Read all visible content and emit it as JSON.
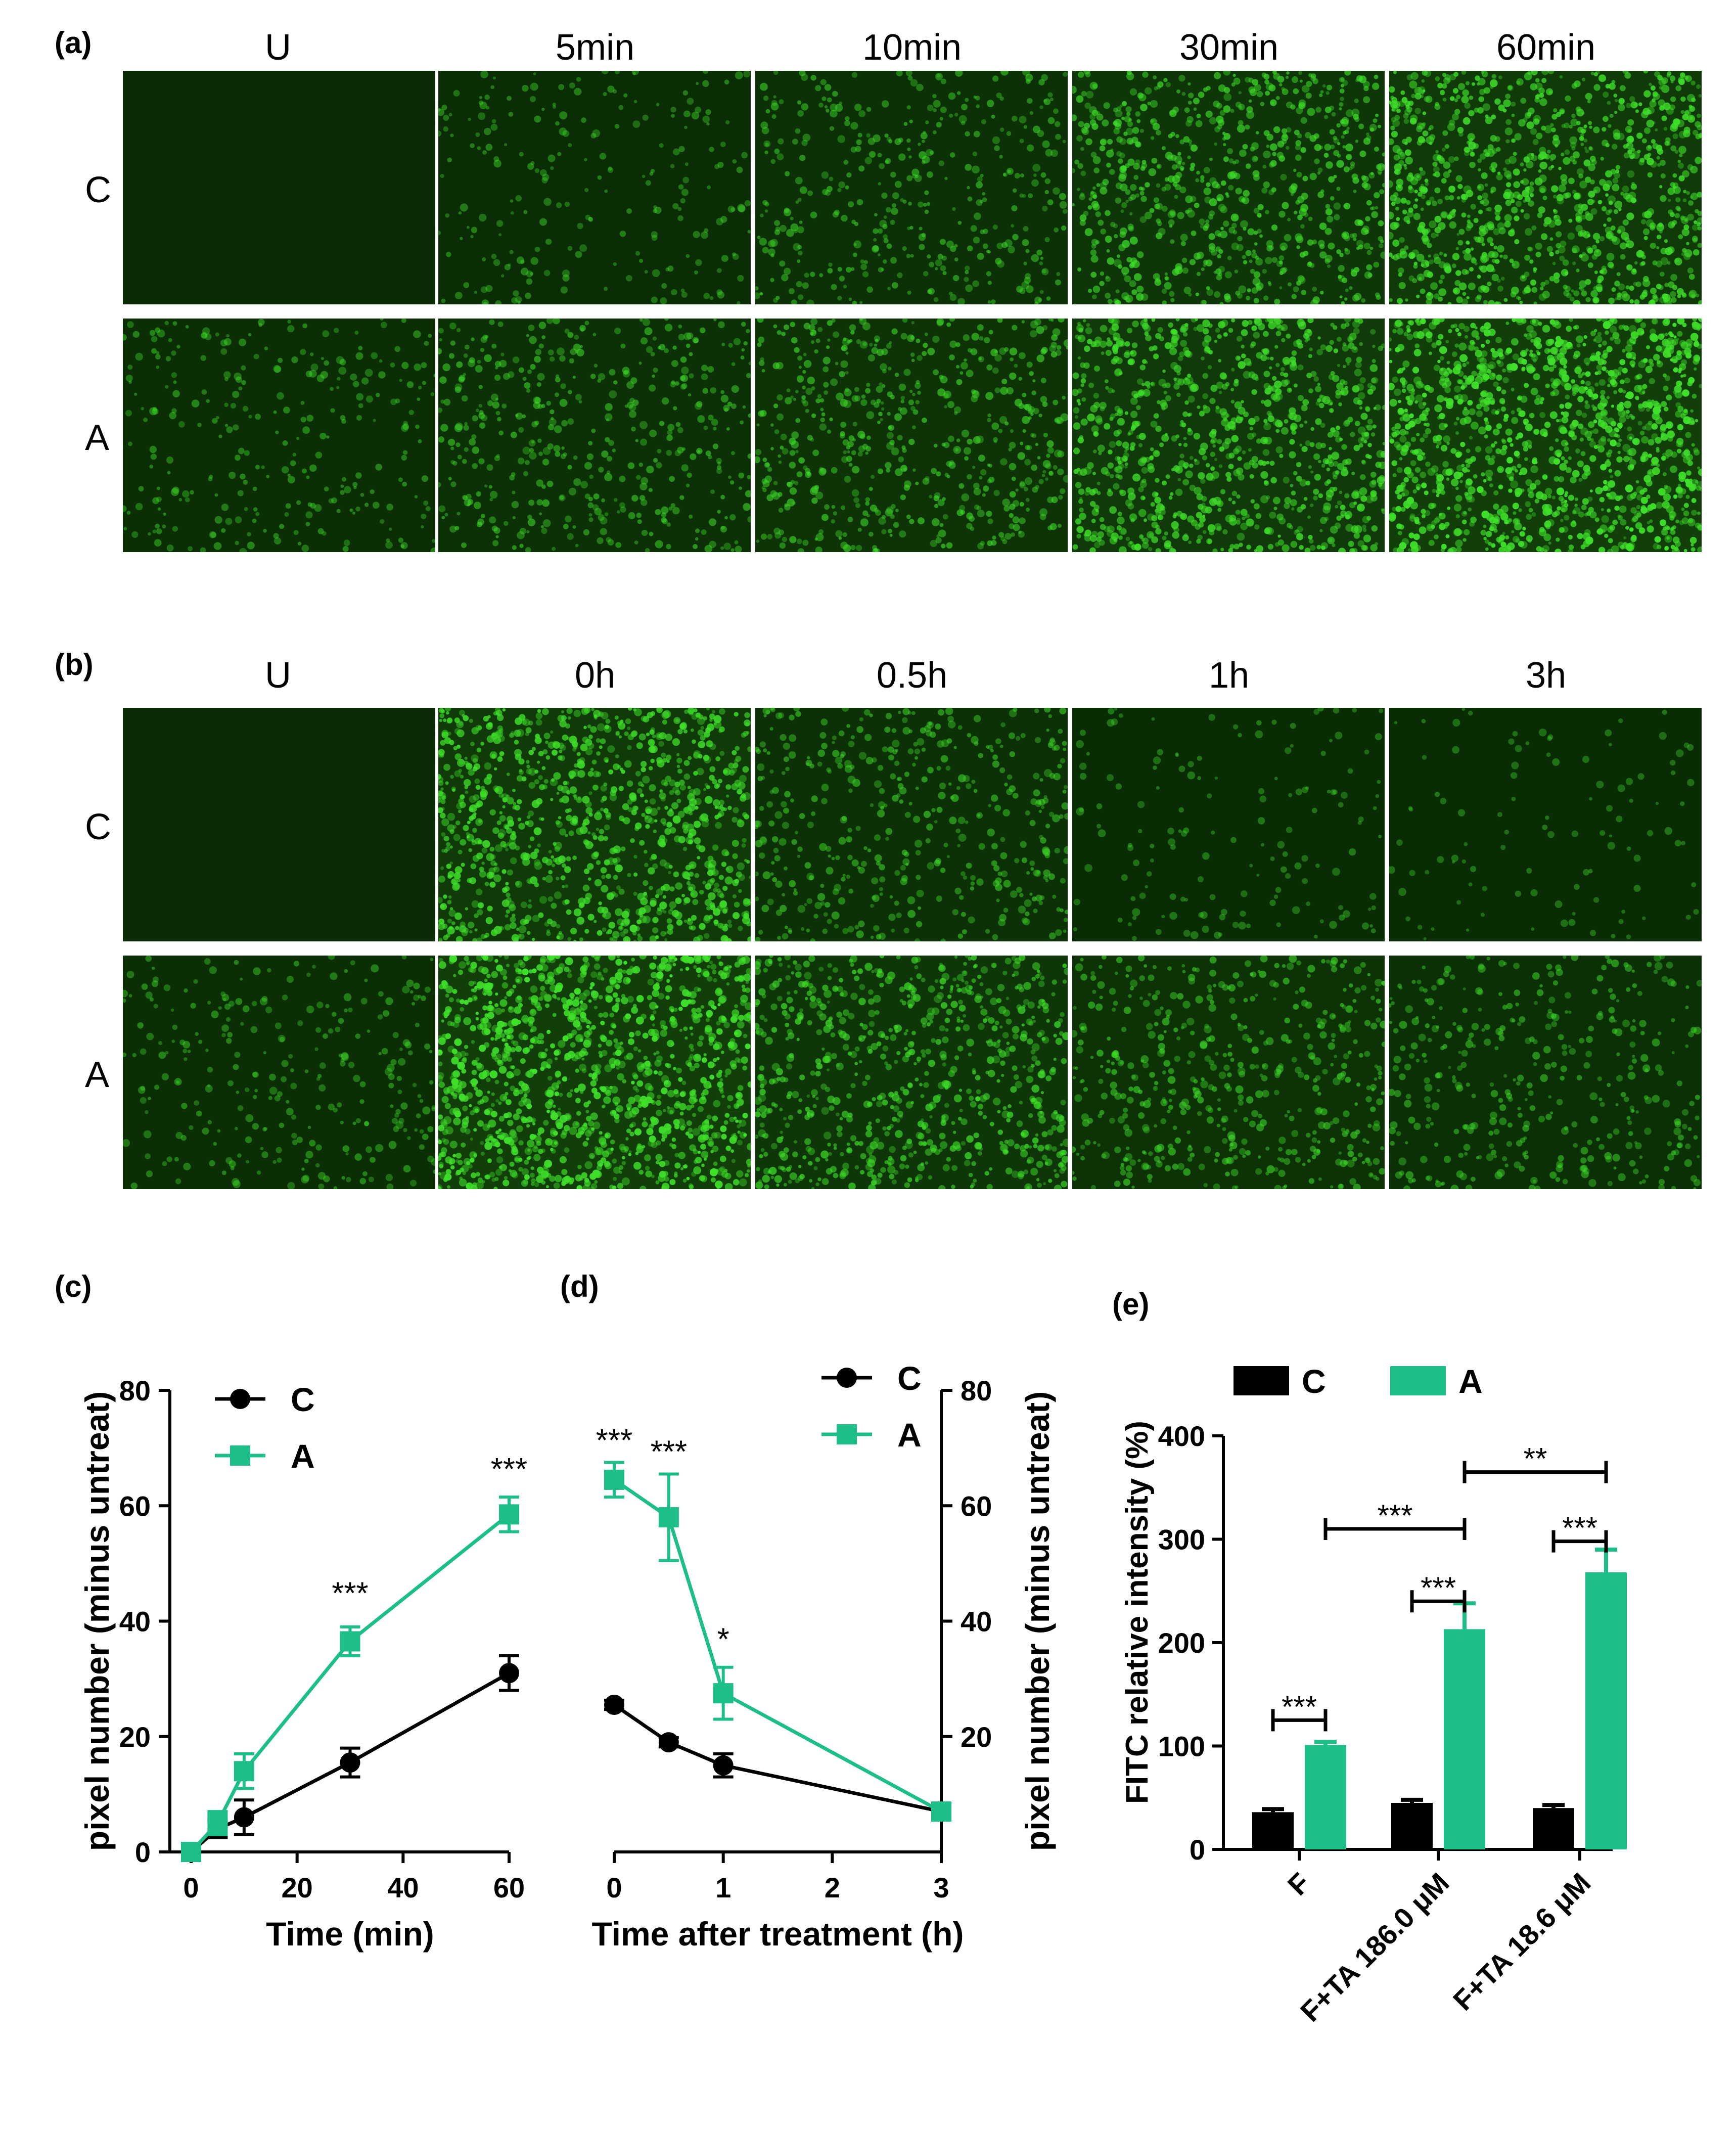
{
  "panels": {
    "a": {
      "label": "(a)",
      "columns": [
        "U",
        "5min",
        "10min",
        "30min",
        "60min"
      ],
      "rows": [
        "C",
        "A"
      ],
      "brightness": [
        [
          0.0,
          0.18,
          0.32,
          0.6,
          0.82
        ],
        [
          0.22,
          0.35,
          0.45,
          0.75,
          1.0
        ]
      ]
    },
    "b": {
      "label": "(b)",
      "columns": [
        "U",
        "0h",
        "0.5h",
        "1h",
        "3h"
      ],
      "rows": [
        "C",
        "A"
      ],
      "brightness": [
        [
          0.0,
          0.82,
          0.35,
          0.12,
          0.08
        ],
        [
          0.22,
          1.0,
          0.6,
          0.4,
          0.3
        ]
      ]
    }
  },
  "colors": {
    "C": "#000000",
    "A": "#1dbf87",
    "micro_bg": "#0a2a05",
    "cell": "#3fe02a"
  },
  "chart_data": [
    {
      "panel": "(c)",
      "type": "line",
      "xlabel": "Time (min)",
      "ylabel": "pixel number (minus untreat)",
      "xlim": [
        0,
        60
      ],
      "ylim": [
        0,
        80
      ],
      "xticks": [
        "0",
        "20",
        "40",
        "60"
      ],
      "yticks": [
        "0",
        "20",
        "40",
        "60",
        "80"
      ],
      "legend": "top-left",
      "series": [
        {
          "name": "C",
          "x": [
            0,
            5,
            10,
            30,
            60
          ],
          "y": [
            0,
            4,
            6,
            15.5,
            31
          ],
          "err": [
            0.5,
            1.5,
            3,
            2.5,
            3
          ],
          "marker": "circle"
        },
        {
          "name": "A",
          "x": [
            0,
            5,
            10,
            30,
            60
          ],
          "y": [
            0,
            5,
            14,
            36.5,
            58.5
          ],
          "err": [
            0.5,
            2,
            3,
            2.5,
            3
          ],
          "marker": "square"
        }
      ],
      "annotations": [
        {
          "x": 30,
          "y": 43,
          "text": "***"
        },
        {
          "x": 60,
          "y": 64.5,
          "text": "***"
        }
      ]
    },
    {
      "panel": "(d)",
      "type": "line",
      "xlabel": "Time after treatment (h)",
      "ylabel": "pixel number (minus untreat)",
      "xlim": [
        0,
        3
      ],
      "ylim": [
        0,
        80
      ],
      "xticks": [
        "0",
        "1",
        "2",
        "3"
      ],
      "yticks": [
        "20",
        "40",
        "60",
        "80"
      ],
      "legend": "top-right",
      "series": [
        {
          "name": "C",
          "x": [
            0,
            0.5,
            1,
            3
          ],
          "y": [
            25.5,
            19,
            15,
            7
          ],
          "err": [
            0.8,
            0.8,
            2,
            0.8
          ],
          "marker": "circle"
        },
        {
          "name": "A",
          "x": [
            0,
            0.5,
            1,
            3
          ],
          "y": [
            64.5,
            58,
            27.5,
            7
          ],
          "err": [
            3,
            7.5,
            4.5,
            0.8
          ],
          "marker": "square"
        }
      ],
      "annotations": [
        {
          "x": 0,
          "y": 69.5,
          "text": "***"
        },
        {
          "x": 0.5,
          "y": 67.5,
          "text": "***"
        },
        {
          "x": 1,
          "y": 35,
          "text": "*"
        }
      ]
    },
    {
      "panel": "(e)",
      "type": "bar",
      "ylabel": "FITC relative intensity (%)",
      "ylim": [
        0,
        400
      ],
      "yticks": [
        "0",
        "100",
        "200",
        "300",
        "400"
      ],
      "categories": [
        "F",
        "F+TA 186.0 μM",
        "F+TA 18.6 μM"
      ],
      "legend": "top",
      "series": [
        {
          "name": "C",
          "values": [
            36,
            45,
            40
          ],
          "err": [
            3,
            3,
            3
          ]
        },
        {
          "name": "A",
          "values": [
            101,
            213,
            268
          ],
          "err": [
            3,
            25,
            22
          ]
        }
      ],
      "brackets": [
        {
          "from": [
            0,
            "C"
          ],
          "to": [
            0,
            "A"
          ],
          "y": 125,
          "text": "***"
        },
        {
          "from": [
            1,
            "C"
          ],
          "to": [
            1,
            "A"
          ],
          "y": 240,
          "text": "***"
        },
        {
          "from": [
            2,
            "C"
          ],
          "to": [
            2,
            "A"
          ],
          "y": 298,
          "text": "***"
        },
        {
          "from": [
            0,
            "A"
          ],
          "to": [
            1,
            "A"
          ],
          "y": 310,
          "text": "***"
        },
        {
          "from": [
            1,
            "A"
          ],
          "to": [
            2,
            "A"
          ],
          "y": 365,
          "text": "**"
        }
      ]
    }
  ]
}
